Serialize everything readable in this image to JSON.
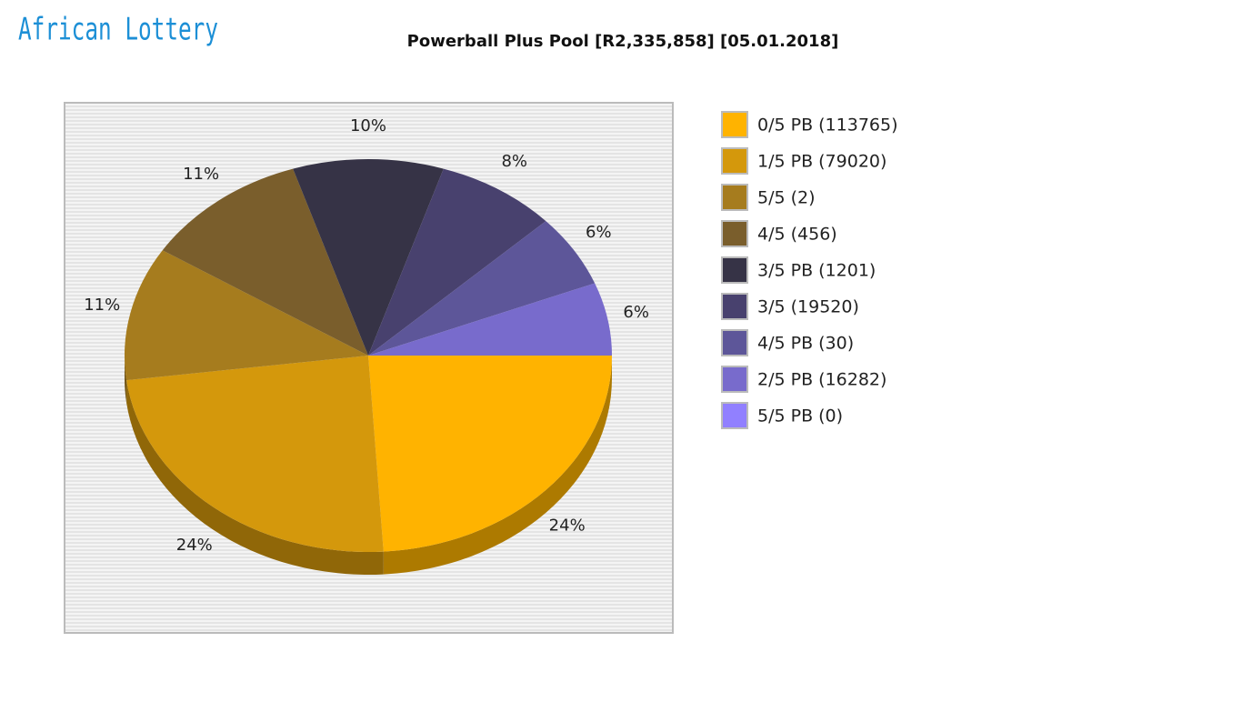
{
  "logo": "African Lottery",
  "chart_data": {
    "type": "pie",
    "title": "Powerball Plus Pool [R2,335,858] [05.01.2018]",
    "categories": [
      "0/5 PB (113765)",
      "1/5 PB (79020)",
      "5/5 (2)",
      "4/5 (456)",
      "3/5 PB (1201)",
      "3/5 (19520)",
      "4/5 PB (30)",
      "2/5 PB (16282)",
      "5/5 PB (0)"
    ],
    "values": [
      24,
      24,
      11,
      11,
      10,
      8,
      6,
      6,
      0
    ],
    "value_labels": [
      "24%",
      "24%",
      "11%",
      "11%",
      "10%",
      "8%",
      "6%",
      "6%",
      null
    ],
    "colors": [
      "#ffb300",
      "#d4980c",
      "#a67c1e",
      "#7a5e2c",
      "#363346",
      "#48416e",
      "#5d5699",
      "#786bcc",
      "#9180ff"
    ],
    "legend": "right"
  }
}
